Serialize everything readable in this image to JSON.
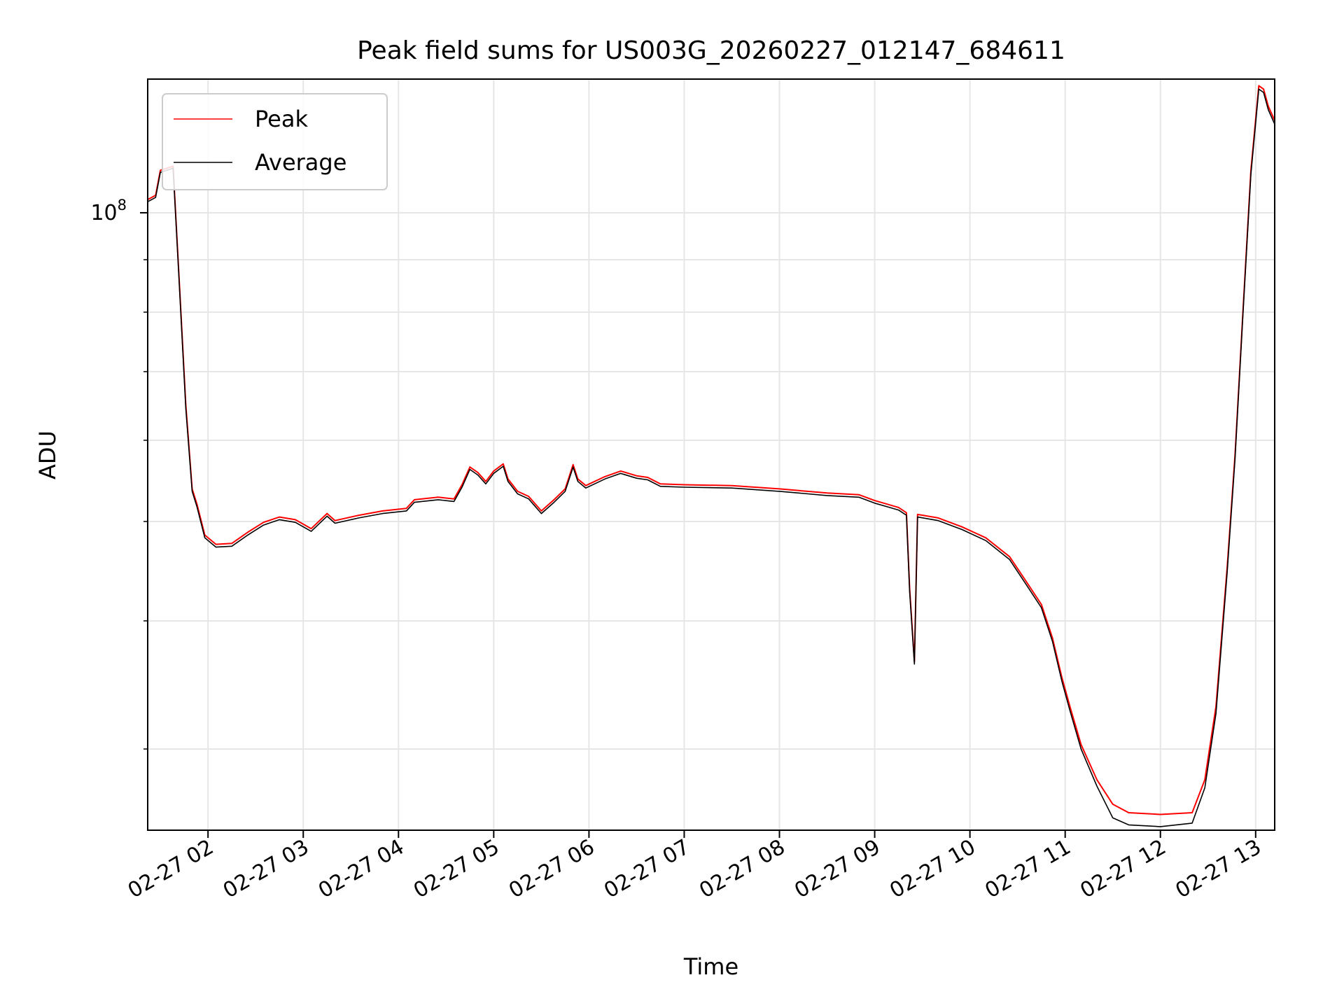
{
  "chart_data": {
    "type": "line",
    "title": "Peak field sums for US003G_20260227_012147_684611",
    "xlabel": "Time",
    "ylabel": "ADU",
    "y_scale": "log",
    "ylim": [
      25000000,
      135000000
    ],
    "xlim": [
      "2026-02-27 01:22",
      "2026-02-27 13:12"
    ],
    "x_ticks": [
      {
        "value": "2026-02-27 02:00",
        "label": "02-27 02"
      },
      {
        "value": "2026-02-27 03:00",
        "label": "02-27 03"
      },
      {
        "value": "2026-02-27 04:00",
        "label": "02-27 04"
      },
      {
        "value": "2026-02-27 05:00",
        "label": "02-27 05"
      },
      {
        "value": "2026-02-27 06:00",
        "label": "02-27 06"
      },
      {
        "value": "2026-02-27 07:00",
        "label": "02-27 07"
      },
      {
        "value": "2026-02-27 08:00",
        "label": "02-27 08"
      },
      {
        "value": "2026-02-27 09:00",
        "label": "02-27 09"
      },
      {
        "value": "2026-02-27 10:00",
        "label": "02-27 10"
      },
      {
        "value": "2026-02-27 11:00",
        "label": "02-27 11"
      },
      {
        "value": "2026-02-27 12:00",
        "label": "02-27 12"
      },
      {
        "value": "2026-02-27 13:00",
        "label": "02-27 13"
      }
    ],
    "y_major_ticks": [
      {
        "value": 100000000,
        "base": "10",
        "exp": "8"
      }
    ],
    "y_minor_ticks": [
      30000000,
      40000000,
      50000000,
      60000000,
      70000000,
      80000000,
      90000000
    ],
    "grid": true,
    "legend_position": "top-left",
    "series": [
      {
        "name": "Peak",
        "color": "#ff0000",
        "points": [
          [
            "2026-02-27 01:22",
            103000000
          ],
          [
            "2026-02-27 01:27",
            104000000
          ],
          [
            "2026-02-27 01:30",
            110000000
          ],
          [
            "2026-02-27 01:38",
            111000000
          ],
          [
            "2026-02-27 01:42",
            85000000
          ],
          [
            "2026-02-27 01:46",
            65000000
          ],
          [
            "2026-02-27 01:50",
            53800000
          ],
          [
            "2026-02-27 01:53",
            52000000
          ],
          [
            "2026-02-27 01:58",
            48500000
          ],
          [
            "2026-02-27 02:05",
            47500000
          ],
          [
            "2026-02-27 02:15",
            47600000
          ],
          [
            "2026-02-27 02:25",
            48800000
          ],
          [
            "2026-02-27 02:35",
            49900000
          ],
          [
            "2026-02-27 02:45",
            50500000
          ],
          [
            "2026-02-27 02:55",
            50200000
          ],
          [
            "2026-02-27 03:05",
            49200000
          ],
          [
            "2026-02-27 03:15",
            50900000
          ],
          [
            "2026-02-27 03:20",
            50100000
          ],
          [
            "2026-02-27 03:35",
            50700000
          ],
          [
            "2026-02-27 03:50",
            51200000
          ],
          [
            "2026-02-27 04:05",
            51500000
          ],
          [
            "2026-02-27 04:10",
            52500000
          ],
          [
            "2026-02-27 04:25",
            52800000
          ],
          [
            "2026-02-27 04:35",
            52600000
          ],
          [
            "2026-02-27 04:40",
            54300000
          ],
          [
            "2026-02-27 04:45",
            56500000
          ],
          [
            "2026-02-27 04:50",
            55800000
          ],
          [
            "2026-02-27 04:55",
            54700000
          ],
          [
            "2026-02-27 05:00",
            56000000
          ],
          [
            "2026-02-27 05:06",
            56900000
          ],
          [
            "2026-02-27 05:09",
            55000000
          ],
          [
            "2026-02-27 05:15",
            53500000
          ],
          [
            "2026-02-27 05:22",
            52900000
          ],
          [
            "2026-02-27 05:30",
            51200000
          ],
          [
            "2026-02-27 05:38",
            52500000
          ],
          [
            "2026-02-27 05:45",
            53800000
          ],
          [
            "2026-02-27 05:50",
            56800000
          ],
          [
            "2026-02-27 05:53",
            55000000
          ],
          [
            "2026-02-27 05:58",
            54200000
          ],
          [
            "2026-02-27 06:10",
            55300000
          ],
          [
            "2026-02-27 06:20",
            56000000
          ],
          [
            "2026-02-27 06:30",
            55400000
          ],
          [
            "2026-02-27 06:37",
            55200000
          ],
          [
            "2026-02-27 06:45",
            54400000
          ],
          [
            "2026-02-27 07:00",
            54300000
          ],
          [
            "2026-02-27 07:30",
            54200000
          ],
          [
            "2026-02-27 08:00",
            53800000
          ],
          [
            "2026-02-27 08:30",
            53300000
          ],
          [
            "2026-02-27 08:50",
            53100000
          ],
          [
            "2026-02-27 09:00",
            52400000
          ],
          [
            "2026-02-27 09:15",
            51600000
          ],
          [
            "2026-02-27 09:20",
            51000000
          ],
          [
            "2026-02-27 09:22",
            43000000
          ],
          [
            "2026-02-27 09:25",
            36500000
          ],
          [
            "2026-02-27 09:27",
            50800000
          ],
          [
            "2026-02-27 09:40",
            50400000
          ],
          [
            "2026-02-27 09:55",
            49400000
          ],
          [
            "2026-02-27 10:10",
            48200000
          ],
          [
            "2026-02-27 10:25",
            46200000
          ],
          [
            "2026-02-27 10:35",
            43800000
          ],
          [
            "2026-02-27 10:45",
            41500000
          ],
          [
            "2026-02-27 10:52",
            38500000
          ],
          [
            "2026-02-27 10:58",
            35200000
          ],
          [
            "2026-02-27 11:03",
            33000000
          ],
          [
            "2026-02-27 11:10",
            30300000
          ],
          [
            "2026-02-27 11:20",
            28000000
          ],
          [
            "2026-02-27 11:30",
            26500000
          ],
          [
            "2026-02-27 11:40",
            26000000
          ],
          [
            "2026-02-27 12:00",
            25900000
          ],
          [
            "2026-02-27 12:20",
            26000000
          ],
          [
            "2026-02-27 12:28",
            28000000
          ],
          [
            "2026-02-27 12:35",
            33000000
          ],
          [
            "2026-02-27 12:42",
            45000000
          ],
          [
            "2026-02-27 12:47",
            58000000
          ],
          [
            "2026-02-27 12:52",
            80000000
          ],
          [
            "2026-02-27 12:57",
            110000000
          ],
          [
            "2026-02-27 13:02",
            133000000
          ],
          [
            "2026-02-27 13:05",
            132000000
          ],
          [
            "2026-02-27 13:08",
            127000000
          ],
          [
            "2026-02-27 13:12",
            123000000
          ]
        ]
      },
      {
        "name": "Average",
        "color": "#000000",
        "points": [
          [
            "2026-02-27 01:22",
            102500000
          ],
          [
            "2026-02-27 01:27",
            103500000
          ],
          [
            "2026-02-27 01:30",
            109500000
          ],
          [
            "2026-02-27 01:38",
            110500000
          ],
          [
            "2026-02-27 01:42",
            84500000
          ],
          [
            "2026-02-27 01:46",
            64500000
          ],
          [
            "2026-02-27 01:50",
            53500000
          ],
          [
            "2026-02-27 01:53",
            51700000
          ],
          [
            "2026-02-27 01:58",
            48200000
          ],
          [
            "2026-02-27 02:05",
            47200000
          ],
          [
            "2026-02-27 02:15",
            47300000
          ],
          [
            "2026-02-27 02:25",
            48500000
          ],
          [
            "2026-02-27 02:35",
            49600000
          ],
          [
            "2026-02-27 02:45",
            50200000
          ],
          [
            "2026-02-27 02:55",
            49900000
          ],
          [
            "2026-02-27 03:05",
            48900000
          ],
          [
            "2026-02-27 03:15",
            50600000
          ],
          [
            "2026-02-27 03:20",
            49800000
          ],
          [
            "2026-02-27 03:35",
            50400000
          ],
          [
            "2026-02-27 03:50",
            50900000
          ],
          [
            "2026-02-27 04:05",
            51200000
          ],
          [
            "2026-02-27 04:10",
            52200000
          ],
          [
            "2026-02-27 04:25",
            52500000
          ],
          [
            "2026-02-27 04:35",
            52300000
          ],
          [
            "2026-02-27 04:40",
            54000000
          ],
          [
            "2026-02-27 04:45",
            56200000
          ],
          [
            "2026-02-27 04:50",
            55500000
          ],
          [
            "2026-02-27 04:55",
            54400000
          ],
          [
            "2026-02-27 05:00",
            55700000
          ],
          [
            "2026-02-27 05:06",
            56600000
          ],
          [
            "2026-02-27 05:09",
            54700000
          ],
          [
            "2026-02-27 05:15",
            53200000
          ],
          [
            "2026-02-27 05:22",
            52600000
          ],
          [
            "2026-02-27 05:30",
            50900000
          ],
          [
            "2026-02-27 05:38",
            52200000
          ],
          [
            "2026-02-27 05:45",
            53500000
          ],
          [
            "2026-02-27 05:50",
            56500000
          ],
          [
            "2026-02-27 05:53",
            54700000
          ],
          [
            "2026-02-27 05:58",
            53900000
          ],
          [
            "2026-02-27 06:10",
            55000000
          ],
          [
            "2026-02-27 06:20",
            55700000
          ],
          [
            "2026-02-27 06:30",
            55100000
          ],
          [
            "2026-02-27 06:37",
            54900000
          ],
          [
            "2026-02-27 06:45",
            54100000
          ],
          [
            "2026-02-27 07:00",
            54000000
          ],
          [
            "2026-02-27 07:30",
            53900000
          ],
          [
            "2026-02-27 08:00",
            53500000
          ],
          [
            "2026-02-27 08:30",
            53000000
          ],
          [
            "2026-02-27 08:50",
            52800000
          ],
          [
            "2026-02-27 09:00",
            52100000
          ],
          [
            "2026-02-27 09:15",
            51300000
          ],
          [
            "2026-02-27 09:20",
            50700000
          ],
          [
            "2026-02-27 09:22",
            42700000
          ],
          [
            "2026-02-27 09:25",
            36300000
          ],
          [
            "2026-02-27 09:27",
            50500000
          ],
          [
            "2026-02-27 09:40",
            50100000
          ],
          [
            "2026-02-27 09:55",
            49100000
          ],
          [
            "2026-02-27 10:10",
            47900000
          ],
          [
            "2026-02-27 10:25",
            45900000
          ],
          [
            "2026-02-27 10:35",
            43500000
          ],
          [
            "2026-02-27 10:45",
            41200000
          ],
          [
            "2026-02-27 10:52",
            38200000
          ],
          [
            "2026-02-27 10:58",
            34900000
          ],
          [
            "2026-02-27 11:03",
            32700000
          ],
          [
            "2026-02-27 11:10",
            30000000
          ],
          [
            "2026-02-27 11:20",
            27600000
          ],
          [
            "2026-02-27 11:30",
            25700000
          ],
          [
            "2026-02-27 11:40",
            25300000
          ],
          [
            "2026-02-27 12:00",
            25200000
          ],
          [
            "2026-02-27 12:20",
            25400000
          ],
          [
            "2026-02-27 12:28",
            27500000
          ],
          [
            "2026-02-27 12:35",
            32500000
          ],
          [
            "2026-02-27 12:42",
            44500000
          ],
          [
            "2026-02-27 12:47",
            57500000
          ],
          [
            "2026-02-27 12:52",
            79500000
          ],
          [
            "2026-02-27 12:57",
            109000000
          ],
          [
            "2026-02-27 13:02",
            132000000
          ],
          [
            "2026-02-27 13:05",
            131000000
          ],
          [
            "2026-02-27 13:08",
            126000000
          ],
          [
            "2026-02-27 13:12",
            122000000
          ]
        ]
      }
    ]
  }
}
